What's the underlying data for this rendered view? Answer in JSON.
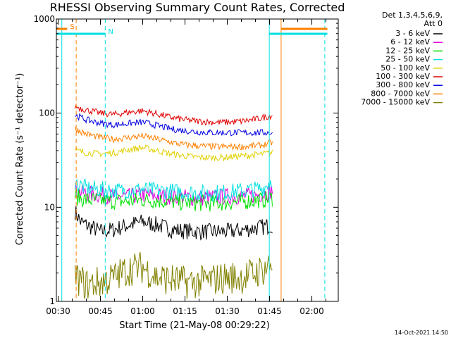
{
  "chart_data": {
    "type": "line",
    "title": "RHESSI Observing Summary Count Rates, Corrected",
    "xlabel": "Start Time (21-May-08 00:29:22)",
    "ylabel": "Corrected Count Rate (s⁻¹ detector⁻¹)",
    "timestamp": "14-Oct-2021 14:50",
    "yscale": "log",
    "ylim": [
      1,
      1000
    ],
    "xlim_min": [
      29.37,
      129.37
    ],
    "x_ticks_min": [
      30,
      45,
      60,
      75,
      90,
      105,
      120
    ],
    "x_tick_labels": [
      "00:30",
      "00:45",
      "01:00",
      "01:15",
      "01:30",
      "01:45",
      "02:00"
    ],
    "y_tick_labels": [
      {
        "value": 1,
        "label": "1"
      },
      {
        "value": 10,
        "label": "10"
      },
      {
        "value": 100,
        "label": "100"
      },
      {
        "value": 1000,
        "label": "1000"
      }
    ],
    "legend_header": [
      "Det 1,3,4,5,6,9,",
      "Att 0"
    ],
    "series": [
      {
        "name": "3 - 6 keV",
        "color": "#000000",
        "points": [
          [
            36,
            9
          ],
          [
            38,
            7
          ],
          [
            40,
            6.5
          ],
          [
            45,
            5.5
          ],
          [
            50,
            5.8
          ],
          [
            55,
            6.5
          ],
          [
            60,
            7
          ],
          [
            65,
            6.5
          ],
          [
            70,
            5.8
          ],
          [
            75,
            5.6
          ],
          [
            80,
            5.5
          ],
          [
            85,
            5.5
          ],
          [
            90,
            5.5
          ],
          [
            95,
            5.7
          ],
          [
            100,
            6
          ],
          [
            103,
            6.2
          ],
          [
            106,
            6.5
          ]
        ]
      },
      {
        "name": "6 - 12 keV",
        "color": "#e000e0",
        "points": [
          [
            36,
            15
          ],
          [
            40,
            14
          ],
          [
            45,
            13.5
          ],
          [
            50,
            13
          ],
          [
            55,
            13
          ],
          [
            60,
            13.5
          ],
          [
            65,
            13.2
          ],
          [
            70,
            13
          ],
          [
            75,
            12.8
          ],
          [
            80,
            12.5
          ],
          [
            85,
            12.8
          ],
          [
            90,
            13
          ],
          [
            95,
            13
          ],
          [
            100,
            13.5
          ],
          [
            103,
            14
          ],
          [
            106,
            15
          ]
        ]
      },
      {
        "name": "12 - 25 keV",
        "color": "#00e000",
        "points": [
          [
            36,
            13
          ],
          [
            40,
            12
          ],
          [
            45,
            11.8
          ],
          [
            50,
            11.5
          ],
          [
            55,
            11.6
          ],
          [
            60,
            12
          ],
          [
            65,
            11.8
          ],
          [
            70,
            11.5
          ],
          [
            75,
            11.2
          ],
          [
            80,
            11
          ],
          [
            85,
            11
          ],
          [
            90,
            11.2
          ],
          [
            95,
            11.5
          ],
          [
            100,
            11.8
          ],
          [
            103,
            12
          ],
          [
            106,
            12.5
          ]
        ]
      },
      {
        "name": "25 - 50 keV",
        "color": "#00e0e0",
        "points": [
          [
            36,
            18
          ],
          [
            40,
            16
          ],
          [
            45,
            15.5
          ],
          [
            50,
            15
          ],
          [
            55,
            15
          ],
          [
            60,
            15.5
          ],
          [
            65,
            15
          ],
          [
            70,
            14.8
          ],
          [
            75,
            14.5
          ],
          [
            80,
            14.2
          ],
          [
            85,
            14.2
          ],
          [
            90,
            14.5
          ],
          [
            95,
            15
          ],
          [
            100,
            15.5
          ],
          [
            103,
            16
          ],
          [
            106,
            20
          ]
        ]
      },
      {
        "name": "50 - 100 keV",
        "color": "#e0d000",
        "points": [
          [
            36,
            40
          ],
          [
            40,
            38
          ],
          [
            45,
            37
          ],
          [
            50,
            38
          ],
          [
            55,
            41
          ],
          [
            60,
            43
          ],
          [
            65,
            40
          ],
          [
            70,
            37
          ],
          [
            75,
            35
          ],
          [
            80,
            34
          ],
          [
            85,
            33.5
          ],
          [
            90,
            34
          ],
          [
            95,
            35
          ],
          [
            100,
            36
          ],
          [
            103,
            37
          ],
          [
            106,
            38
          ]
        ]
      },
      {
        "name": "100 - 300 keV",
        "color": "#e00000",
        "points": [
          [
            36,
            118
          ],
          [
            40,
            108
          ],
          [
            45,
            100
          ],
          [
            50,
            97
          ],
          [
            55,
            102
          ],
          [
            60,
            106
          ],
          [
            65,
            98
          ],
          [
            70,
            90
          ],
          [
            75,
            85
          ],
          [
            80,
            82
          ],
          [
            85,
            80
          ],
          [
            90,
            80
          ],
          [
            95,
            82
          ],
          [
            100,
            86
          ],
          [
            103,
            90
          ],
          [
            106,
            95
          ]
        ]
      },
      {
        "name": "300 - 800 keV",
        "color": "#0000e0",
        "points": [
          [
            36,
            95
          ],
          [
            40,
            85
          ],
          [
            45,
            78
          ],
          [
            50,
            75
          ],
          [
            55,
            78
          ],
          [
            60,
            80
          ],
          [
            65,
            74
          ],
          [
            70,
            68
          ],
          [
            75,
            65
          ],
          [
            80,
            63
          ],
          [
            85,
            62
          ],
          [
            90,
            62
          ],
          [
            95,
            62
          ],
          [
            100,
            62
          ],
          [
            103,
            62
          ],
          [
            106,
            62
          ]
        ]
      },
      {
        "name": "800 - 7000 keV",
        "color": "#ff8000",
        "points": [
          [
            36,
            68
          ],
          [
            40,
            60
          ],
          [
            45,
            55
          ],
          [
            50,
            53
          ],
          [
            55,
            55
          ],
          [
            60,
            57
          ],
          [
            65,
            53
          ],
          [
            70,
            49
          ],
          [
            75,
            46
          ],
          [
            80,
            45
          ],
          [
            85,
            44
          ],
          [
            90,
            44
          ],
          [
            95,
            44
          ],
          [
            100,
            45
          ],
          [
            103,
            46
          ],
          [
            106,
            49
          ]
        ]
      },
      {
        "name": "7000 - 15000 keV",
        "color": "#808000",
        "points": [
          [
            36,
            1.8
          ],
          [
            40,
            1.5
          ],
          [
            45,
            1.6
          ],
          [
            50,
            1.8
          ],
          [
            55,
            2.2
          ],
          [
            60,
            2.3
          ],
          [
            65,
            1.8
          ],
          [
            70,
            1.7
          ],
          [
            75,
            1.6
          ],
          [
            80,
            1.6
          ],
          [
            85,
            1.7
          ],
          [
            90,
            1.8
          ],
          [
            95,
            1.8
          ],
          [
            100,
            2
          ],
          [
            103,
            2.2
          ],
          [
            106,
            2.5
          ]
        ]
      }
    ],
    "markers": [
      {
        "type": "vline",
        "x_min": 31.3,
        "color": "#00e0e0",
        "style": "solid"
      },
      {
        "type": "vline",
        "x_min": 36.4,
        "color": "#ff8000",
        "style": "dashed"
      },
      {
        "type": "vline",
        "x_min": 46.7,
        "color": "#00e0e0",
        "style": "dashed"
      },
      {
        "type": "vline",
        "x_min": 104.9,
        "color": "#00e0e0",
        "style": "solid"
      },
      {
        "type": "vline",
        "x_min": 109.1,
        "color": "#ff8000",
        "style": "solid"
      },
      {
        "type": "vline",
        "x_min": 124.6,
        "color": "#00e0e0",
        "style": "dashed"
      },
      {
        "type": "hbar",
        "x_from": 29.37,
        "x_to": 33.2,
        "color": "#ff8000",
        "label": "S"
      },
      {
        "type": "hbar",
        "x_from": 29.37,
        "x_to": 46.7,
        "color": "#00e0e0",
        "label": "N"
      },
      {
        "type": "hbar",
        "x_from": 104.9,
        "x_to": 125.5,
        "color": "#00e0e0",
        "label": ""
      },
      {
        "type": "hbar",
        "x_from": 109.1,
        "x_to": 125.5,
        "color": "#ff8000",
        "label": ""
      }
    ]
  }
}
